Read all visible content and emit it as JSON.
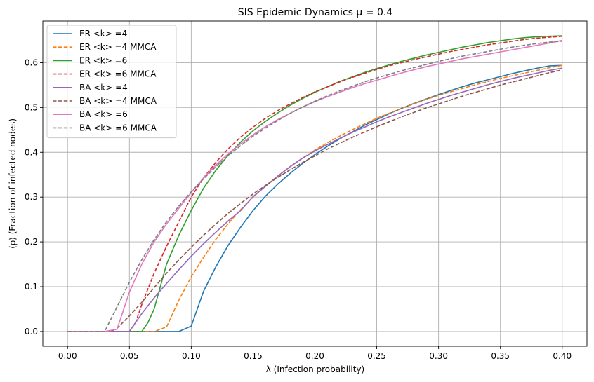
{
  "chart_data": {
    "type": "line",
    "title": "SIS Epidemic Dynamics μ = 0.4",
    "xlabel": "λ (Infection probability)",
    "ylabel": "⟨ρ⟩ (Fraction of infected nodes)",
    "xlim": [
      -0.02,
      0.42
    ],
    "ylim": [
      -0.033,
      0.693
    ],
    "xticks": [
      0.0,
      0.05,
      0.1,
      0.15,
      0.2,
      0.25,
      0.3,
      0.35,
      0.4
    ],
    "xtick_labels": [
      "0.00",
      "0.05",
      "0.10",
      "0.15",
      "0.20",
      "0.25",
      "0.30",
      "0.35",
      "0.40"
    ],
    "yticks": [
      0.0,
      0.1,
      0.2,
      0.3,
      0.4,
      0.5,
      0.6
    ],
    "ytick_labels": [
      "0.0",
      "0.1",
      "0.2",
      "0.3",
      "0.4",
      "0.5",
      "0.6"
    ],
    "grid": true,
    "legend_position": "top-left",
    "series": [
      {
        "name": "ER <k> =4",
        "color": "#1f77b4",
        "dash": "solid",
        "x": [
          0,
          0.01,
          0.02,
          0.03,
          0.04,
          0.05,
          0.06,
          0.07,
          0.08,
          0.09,
          0.1,
          0.11,
          0.12,
          0.13,
          0.14,
          0.15,
          0.16,
          0.17,
          0.18,
          0.19,
          0.2,
          0.21,
          0.22,
          0.23,
          0.24,
          0.25,
          0.26,
          0.27,
          0.28,
          0.29,
          0.3,
          0.31,
          0.32,
          0.33,
          0.34,
          0.35,
          0.36,
          0.37,
          0.38,
          0.39,
          0.4
        ],
        "y": [
          0,
          0,
          0,
          0,
          0,
          0,
          0,
          0,
          0,
          0,
          0.012,
          0.09,
          0.145,
          0.193,
          0.233,
          0.27,
          0.302,
          0.329,
          0.353,
          0.375,
          0.395,
          0.413,
          0.43,
          0.445,
          0.46,
          0.473,
          0.486,
          0.498,
          0.509,
          0.519,
          0.529,
          0.538,
          0.547,
          0.555,
          0.562,
          0.569,
          0.576,
          0.582,
          0.588,
          0.593,
          0.594
        ]
      },
      {
        "name": "ER <k> =4 MMCA",
        "color": "#ff7f0e",
        "dash": "dashed",
        "x": [
          0,
          0.01,
          0.02,
          0.03,
          0.04,
          0.05,
          0.06,
          0.07,
          0.08,
          0.09,
          0.1,
          0.11,
          0.12,
          0.13,
          0.14,
          0.15,
          0.16,
          0.17,
          0.18,
          0.19,
          0.2,
          0.21,
          0.22,
          0.23,
          0.24,
          0.25,
          0.26,
          0.27,
          0.28,
          0.29,
          0.3,
          0.31,
          0.32,
          0.33,
          0.34,
          0.35,
          0.36,
          0.37,
          0.38,
          0.39,
          0.4
        ],
        "y": [
          0,
          0,
          0,
          0,
          0,
          0,
          0,
          0,
          0.01,
          0.07,
          0.122,
          0.166,
          0.206,
          0.241,
          0.272,
          0.3,
          0.325,
          0.347,
          0.368,
          0.387,
          0.405,
          0.421,
          0.436,
          0.45,
          0.463,
          0.476,
          0.487,
          0.498,
          0.508,
          0.518,
          0.527,
          0.535,
          0.543,
          0.551,
          0.558,
          0.565,
          0.571,
          0.577,
          0.583,
          0.589,
          0.594
        ]
      },
      {
        "name": "ER <k> =6",
        "color": "#2ca02c",
        "dash": "solid",
        "x": [
          0,
          0.01,
          0.02,
          0.03,
          0.04,
          0.05,
          0.06,
          0.065,
          0.07,
          0.075,
          0.08,
          0.09,
          0.1,
          0.11,
          0.12,
          0.13,
          0.14,
          0.15,
          0.16,
          0.17,
          0.18,
          0.19,
          0.2,
          0.21,
          0.22,
          0.23,
          0.24,
          0.25,
          0.26,
          0.27,
          0.28,
          0.29,
          0.3,
          0.31,
          0.32,
          0.33,
          0.34,
          0.35,
          0.36,
          0.37,
          0.38,
          0.39,
          0.4
        ],
        "y": [
          0,
          0,
          0,
          0,
          0,
          0,
          0,
          0.02,
          0.05,
          0.1,
          0.15,
          0.215,
          0.27,
          0.32,
          0.36,
          0.394,
          0.423,
          0.448,
          0.469,
          0.488,
          0.505,
          0.52,
          0.534,
          0.546,
          0.558,
          0.568,
          0.578,
          0.587,
          0.595,
          0.603,
          0.61,
          0.617,
          0.623,
          0.629,
          0.635,
          0.64,
          0.645,
          0.649,
          0.653,
          0.656,
          0.658,
          0.659,
          0.66
        ]
      },
      {
        "name": "ER <k> =6 MMCA",
        "color": "#d62728",
        "dash": "dashed",
        "x": [
          0,
          0.01,
          0.02,
          0.03,
          0.04,
          0.05,
          0.055,
          0.06,
          0.07,
          0.08,
          0.09,
          0.1,
          0.11,
          0.12,
          0.13,
          0.14,
          0.15,
          0.16,
          0.17,
          0.18,
          0.19,
          0.2,
          0.21,
          0.22,
          0.23,
          0.24,
          0.25,
          0.26,
          0.27,
          0.28,
          0.29,
          0.3,
          0.31,
          0.32,
          0.33,
          0.34,
          0.35,
          0.36,
          0.37,
          0.38,
          0.39,
          0.4
        ],
        "y": [
          0,
          0,
          0,
          0,
          0,
          0,
          0.02,
          0.06,
          0.13,
          0.19,
          0.245,
          0.3,
          0.343,
          0.378,
          0.408,
          0.434,
          0.456,
          0.476,
          0.493,
          0.508,
          0.522,
          0.535,
          0.546,
          0.557,
          0.567,
          0.576,
          0.585,
          0.593,
          0.6,
          0.607,
          0.613,
          0.619,
          0.625,
          0.63,
          0.635,
          0.64,
          0.644,
          0.648,
          0.652,
          0.655,
          0.657,
          0.659
        ]
      },
      {
        "name": "BA <k> =4",
        "color": "#9467bd",
        "dash": "solid",
        "x": [
          0,
          0.01,
          0.02,
          0.03,
          0.04,
          0.05,
          0.055,
          0.06,
          0.07,
          0.08,
          0.09,
          0.1,
          0.11,
          0.12,
          0.13,
          0.14,
          0.15,
          0.16,
          0.17,
          0.18,
          0.19,
          0.2,
          0.21,
          0.22,
          0.23,
          0.24,
          0.25,
          0.26,
          0.27,
          0.28,
          0.29,
          0.3,
          0.31,
          0.32,
          0.33,
          0.34,
          0.35,
          0.36,
          0.37,
          0.38,
          0.39,
          0.4
        ],
        "y": [
          0,
          0,
          0,
          0,
          0,
          0,
          0.02,
          0.04,
          0.075,
          0.107,
          0.138,
          0.168,
          0.196,
          0.222,
          0.247,
          0.27,
          0.301,
          0.324,
          0.347,
          0.368,
          0.387,
          0.403,
          0.417,
          0.431,
          0.444,
          0.456,
          0.468,
          0.479,
          0.489,
          0.499,
          0.509,
          0.518,
          0.527,
          0.535,
          0.543,
          0.551,
          0.558,
          0.565,
          0.571,
          0.577,
          0.583,
          0.588
        ]
      },
      {
        "name": "BA <k> =4 MMCA",
        "color": "#8c564b",
        "dash": "dashed",
        "x": [
          0,
          0.01,
          0.02,
          0.03,
          0.035,
          0.04,
          0.05,
          0.06,
          0.07,
          0.08,
          0.09,
          0.1,
          0.11,
          0.12,
          0.13,
          0.14,
          0.15,
          0.16,
          0.17,
          0.18,
          0.19,
          0.2,
          0.21,
          0.22,
          0.23,
          0.24,
          0.25,
          0.26,
          0.27,
          0.28,
          0.29,
          0.3,
          0.31,
          0.32,
          0.33,
          0.34,
          0.35,
          0.36,
          0.37,
          0.38,
          0.39,
          0.4
        ],
        "y": [
          0,
          0,
          0,
          0,
          0,
          0.007,
          0.035,
          0.065,
          0.098,
          0.13,
          0.16,
          0.188,
          0.215,
          0.24,
          0.264,
          0.286,
          0.307,
          0.326,
          0.344,
          0.361,
          0.377,
          0.392,
          0.407,
          0.42,
          0.433,
          0.445,
          0.457,
          0.468,
          0.479,
          0.489,
          0.499,
          0.508,
          0.517,
          0.526,
          0.534,
          0.542,
          0.55,
          0.557,
          0.564,
          0.571,
          0.578,
          0.584
        ]
      },
      {
        "name": "BA <k> =6",
        "color": "#e377c2",
        "dash": "solid",
        "x": [
          0,
          0.01,
          0.02,
          0.03,
          0.04,
          0.05,
          0.06,
          0.07,
          0.08,
          0.09,
          0.1,
          0.11,
          0.12,
          0.13,
          0.14,
          0.15,
          0.16,
          0.17,
          0.18,
          0.19,
          0.2,
          0.21,
          0.22,
          0.23,
          0.24,
          0.25,
          0.26,
          0.27,
          0.28,
          0.29,
          0.3,
          0.31,
          0.32,
          0.33,
          0.34,
          0.35,
          0.36,
          0.37,
          0.38,
          0.39,
          0.4
        ],
        "y": [
          0,
          0,
          0,
          0,
          0.005,
          0.088,
          0.15,
          0.2,
          0.24,
          0.275,
          0.31,
          0.343,
          0.372,
          0.397,
          0.419,
          0.439,
          0.457,
          0.473,
          0.487,
          0.501,
          0.513,
          0.524,
          0.534,
          0.544,
          0.553,
          0.561,
          0.569,
          0.577,
          0.584,
          0.591,
          0.597,
          0.603,
          0.609,
          0.614,
          0.619,
          0.624,
          0.629,
          0.634,
          0.639,
          0.644,
          0.65
        ]
      },
      {
        "name": "BA <k> =6 MMCA",
        "color": "#7f7f7f",
        "dash": "dashed",
        "x": [
          0,
          0.01,
          0.02,
          0.03,
          0.04,
          0.05,
          0.06,
          0.07,
          0.08,
          0.09,
          0.1,
          0.11,
          0.12,
          0.13,
          0.14,
          0.15,
          0.16,
          0.17,
          0.18,
          0.19,
          0.2,
          0.21,
          0.22,
          0.23,
          0.24,
          0.25,
          0.26,
          0.27,
          0.28,
          0.29,
          0.3,
          0.31,
          0.32,
          0.33,
          0.34,
          0.35,
          0.36,
          0.37,
          0.38,
          0.39,
          0.4
        ],
        "y": [
          0,
          0,
          0,
          0,
          0.055,
          0.11,
          0.16,
          0.205,
          0.245,
          0.28,
          0.312,
          0.341,
          0.368,
          0.393,
          0.415,
          0.436,
          0.454,
          0.471,
          0.487,
          0.501,
          0.514,
          0.526,
          0.537,
          0.547,
          0.557,
          0.566,
          0.574,
          0.582,
          0.589,
          0.596,
          0.603,
          0.609,
          0.615,
          0.62,
          0.625,
          0.63,
          0.635,
          0.639,
          0.643,
          0.646,
          0.648
        ]
      }
    ]
  }
}
